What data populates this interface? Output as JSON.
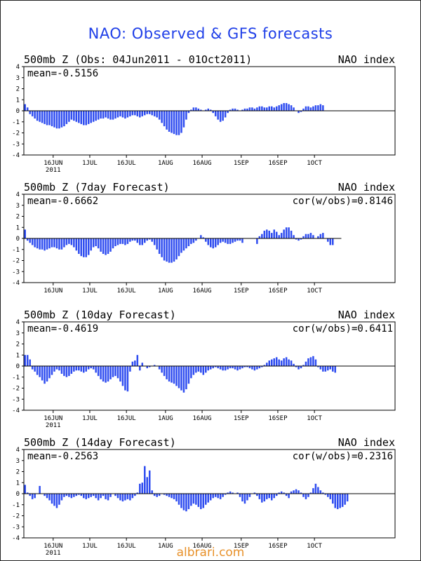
{
  "title": "NAO: Observed & GFS forecasts",
  "watermark": "albrari.com",
  "colors": {
    "bar": "#2f4df0",
    "title": "#1f3fe8",
    "watermark": "#e8912a",
    "axis": "#000000"
  },
  "chart_data": [
    {
      "type": "bar",
      "title": "500mb  Z (Obs: 04Jun2011 - 01Oct2011)",
      "right_label": "NAO index",
      "mean_text": "mean=-0.5156",
      "cor_text": "",
      "ylim": [
        -4,
        4
      ],
      "yticks": [
        4,
        3,
        2,
        1,
        0,
        -1,
        -2,
        -3,
        -4
      ],
      "xlim": [
        4,
        156
      ],
      "xticks": [
        {
          "day": 16,
          "label": "16JUN"
        },
        {
          "day": 31,
          "label": "1JUL"
        },
        {
          "day": 46,
          "label": "16JUL"
        },
        {
          "day": 62,
          "label": "1AUG"
        },
        {
          "day": 77,
          "label": "16AUG"
        },
        {
          "day": 93,
          "label": "1SEP"
        },
        {
          "day": 108,
          "label": "16SEP"
        },
        {
          "day": 123,
          "label": "1OCT"
        }
      ],
      "year_label": "2011",
      "x_start": 4,
      "values": [
        0.6,
        0.3,
        -0.3,
        -0.5,
        -0.7,
        -0.9,
        -1.0,
        -1.1,
        -1.2,
        -1.3,
        -1.3,
        -1.4,
        -1.5,
        -1.6,
        -1.6,
        -1.5,
        -1.4,
        -1.2,
        -1.0,
        -0.8,
        -0.9,
        -1.0,
        -1.1,
        -1.2,
        -1.3,
        -1.3,
        -1.2,
        -1.1,
        -1.0,
        -0.9,
        -0.8,
        -0.7,
        -0.7,
        -0.6,
        -0.7,
        -0.8,
        -0.8,
        -0.7,
        -0.6,
        -0.5,
        -0.6,
        -0.7,
        -0.6,
        -0.5,
        -0.4,
        -0.4,
        -0.5,
        -0.6,
        -0.5,
        -0.4,
        -0.3,
        -0.3,
        -0.4,
        -0.5,
        -0.6,
        -0.8,
        -1.1,
        -1.4,
        -1.7,
        -1.9,
        -2.0,
        -2.1,
        -2.2,
        -2.2,
        -2.0,
        -1.5,
        -0.8,
        -0.2,
        0.1,
        0.3,
        0.3,
        0.2,
        0.1,
        0.0,
        0.1,
        0.2,
        0.1,
        -0.2,
        -0.5,
        -0.8,
        -1.0,
        -0.9,
        -0.6,
        -0.2,
        0.1,
        0.2,
        0.2,
        0.1,
        0.0,
        0.1,
        0.2,
        0.2,
        0.3,
        0.3,
        0.2,
        0.3,
        0.4,
        0.4,
        0.3,
        0.3,
        0.4,
        0.4,
        0.3,
        0.4,
        0.5,
        0.6,
        0.7,
        0.7,
        0.6,
        0.5,
        0.3,
        0.0,
        -0.2,
        -0.1,
        0.2,
        0.4,
        0.4,
        0.3,
        0.4,
        0.5,
        0.5,
        0.6,
        0.5
      ],
      "reference_line_to": 156
    },
    {
      "type": "bar",
      "title": "500mb  Z (7day Forecast)",
      "right_label": "NAO index",
      "mean_text": "mean=-0.6662",
      "cor_text": "cor(w/obs)=0.8146",
      "ylim": [
        -4,
        4
      ],
      "yticks": [
        4,
        3,
        2,
        1,
        0,
        -1,
        -2,
        -3,
        -4
      ],
      "xlim": [
        4,
        156
      ],
      "xticks": [
        {
          "day": 16,
          "label": "16JUN"
        },
        {
          "day": 31,
          "label": "1JUL"
        },
        {
          "day": 46,
          "label": "16JUL"
        },
        {
          "day": 62,
          "label": "1AUG"
        },
        {
          "day": 77,
          "label": "16AUG"
        },
        {
          "day": 93,
          "label": "1SEP"
        },
        {
          "day": 108,
          "label": "16SEP"
        },
        {
          "day": 123,
          "label": "1OCT"
        }
      ],
      "year_label": "",
      "x_start": 4,
      "values": [
        0.8,
        -0.2,
        -0.4,
        -0.6,
        -0.8,
        -0.9,
        -1.0,
        -1.0,
        -1.1,
        -1.0,
        -0.9,
        -0.8,
        -0.8,
        -0.9,
        -1.0,
        -1.0,
        -0.8,
        -0.6,
        -0.5,
        -0.6,
        -0.8,
        -1.1,
        -1.4,
        -1.6,
        -1.7,
        -1.7,
        -1.5,
        -1.1,
        -0.8,
        -0.7,
        -0.9,
        -1.2,
        -1.4,
        -1.5,
        -1.4,
        -1.2,
        -0.9,
        -0.7,
        -0.6,
        -0.5,
        -0.5,
        -0.6,
        -0.5,
        -0.3,
        -0.2,
        -0.2,
        -0.4,
        -0.6,
        -0.6,
        -0.4,
        -0.2,
        -0.1,
        -0.3,
        -0.6,
        -1.0,
        -1.4,
        -1.7,
        -2.0,
        -2.1,
        -2.2,
        -2.2,
        -2.1,
        -1.9,
        -1.6,
        -1.3,
        -1.1,
        -0.9,
        -0.7,
        -0.5,
        -0.4,
        -0.2,
        0.0,
        0.3,
        0.1,
        -0.3,
        -0.6,
        -0.8,
        -0.9,
        -0.8,
        -0.6,
        -0.4,
        -0.3,
        -0.4,
        -0.5,
        -0.5,
        -0.4,
        -0.3,
        -0.2,
        -0.2,
        -0.4,
        0.0,
        0.0,
        0.0,
        0.0,
        0.0,
        -0.5,
        0.2,
        0.4,
        0.7,
        0.8,
        0.7,
        0.5,
        0.8,
        0.6,
        0.3,
        0.5,
        0.8,
        1.0,
        1.0,
        0.7,
        0.3,
        -0.1,
        -0.2,
        -0.1,
        0.2,
        0.4,
        0.4,
        0.5,
        0.3,
        0.0,
        0.2,
        0.4,
        0.5,
        0.0,
        -0.3,
        -0.6,
        -0.6
      ],
      "reference_line_to": 134
    },
    {
      "type": "bar",
      "title": "500mb  Z (10day Forecast)",
      "right_label": "NAO index",
      "mean_text": "mean=-0.4619",
      "cor_text": "cor(w/obs)=0.6411",
      "ylim": [
        -4,
        4
      ],
      "yticks": [
        4,
        3,
        2,
        1,
        0,
        -1,
        -2,
        -3,
        -4
      ],
      "xlim": [
        4,
        156
      ],
      "xticks": [
        {
          "day": 16,
          "label": "16JUN"
        },
        {
          "day": 31,
          "label": "1JUL"
        },
        {
          "day": 46,
          "label": "16JUL"
        },
        {
          "day": 62,
          "label": "1AUG"
        },
        {
          "day": 77,
          "label": "16AUG"
        },
        {
          "day": 93,
          "label": "1SEP"
        },
        {
          "day": 108,
          "label": "16SEP"
        },
        {
          "day": 123,
          "label": "1OCT"
        }
      ],
      "year_label": "2011",
      "x_start": 4,
      "values": [
        1.0,
        1.0,
        0.6,
        -0.3,
        -0.5,
        -0.8,
        -1.0,
        -1.3,
        -1.6,
        -1.4,
        -1.1,
        -0.8,
        -0.5,
        -0.3,
        -0.4,
        -0.7,
        -0.9,
        -1.0,
        -0.9,
        -0.7,
        -0.5,
        -0.4,
        -0.4,
        -0.5,
        -0.6,
        -0.5,
        -0.3,
        -0.2,
        -0.3,
        -0.6,
        -0.9,
        -1.2,
        -1.4,
        -1.5,
        -1.4,
        -1.2,
        -1.0,
        -0.9,
        -1.1,
        -1.4,
        -1.8,
        -2.2,
        -2.3,
        -0.5,
        0.4,
        0.5,
        1.0,
        -0.4,
        0.3,
        0.0,
        -0.2,
        -0.1,
        0.0,
        0.1,
        0.0,
        -0.3,
        -0.6,
        -0.9,
        -1.2,
        -1.4,
        -1.5,
        -1.6,
        -1.8,
        -2.0,
        -2.2,
        -2.4,
        -2.1,
        -1.6,
        -1.1,
        -0.8,
        -0.6,
        -0.5,
        -0.6,
        -0.8,
        -0.6,
        -0.4,
        -0.3,
        -0.2,
        -0.1,
        -0.2,
        -0.3,
        -0.4,
        -0.4,
        -0.3,
        -0.2,
        -0.2,
        -0.3,
        -0.4,
        -0.3,
        -0.2,
        -0.1,
        -0.1,
        -0.2,
        -0.3,
        -0.4,
        -0.3,
        -0.2,
        -0.1,
        0.1,
        0.3,
        0.5,
        0.6,
        0.7,
        0.8,
        0.6,
        0.5,
        0.7,
        0.8,
        0.6,
        0.5,
        0.2,
        -0.1,
        -0.3,
        -0.2,
        0.1,
        0.4,
        0.7,
        0.8,
        0.9,
        0.6,
        -0.1,
        -0.3,
        -0.5,
        -0.5,
        -0.4,
        -0.3,
        -0.5,
        -0.6
      ],
      "reference_line_to": 156
    },
    {
      "type": "bar",
      "title": "500mb  Z (14day Forecast)",
      "right_label": "NAO index",
      "mean_text": "mean=-0.2563",
      "cor_text": "cor(w/obs)=0.2316",
      "ylim": [
        -4,
        4
      ],
      "yticks": [
        4,
        3,
        2,
        1,
        0,
        -1,
        -2,
        -3,
        -4
      ],
      "xlim": [
        4,
        156
      ],
      "xticks": [
        {
          "day": 16,
          "label": "16JUN"
        },
        {
          "day": 31,
          "label": "1JUL"
        },
        {
          "day": 46,
          "label": "16JUL"
        },
        {
          "day": 62,
          "label": "1AUG"
        },
        {
          "day": 77,
          "label": "16AUG"
        },
        {
          "day": 93,
          "label": "1SEP"
        },
        {
          "day": 108,
          "label": "16SEP"
        },
        {
          "day": 123,
          "label": "1OCT"
        }
      ],
      "year_label": "2011",
      "x_start": 4,
      "values": [
        0.8,
        0.1,
        -0.2,
        -0.5,
        -0.4,
        0.0,
        0.7,
        0.0,
        -0.2,
        -0.4,
        -0.6,
        -0.9,
        -1.1,
        -1.3,
        -1.0,
        -0.6,
        -0.3,
        -0.2,
        -0.3,
        -0.4,
        -0.3,
        -0.2,
        -0.1,
        -0.2,
        -0.4,
        -0.5,
        -0.4,
        -0.3,
        -0.2,
        -0.4,
        -0.6,
        -0.4,
        -0.2,
        -0.5,
        -0.6,
        -0.3,
        0.0,
        -0.2,
        -0.4,
        -0.6,
        -0.7,
        -0.6,
        -0.5,
        -0.6,
        -0.4,
        -0.2,
        0.1,
        0.9,
        1.0,
        2.5,
        1.5,
        2.1,
        0.3,
        -0.2,
        -0.3,
        -0.2,
        0.0,
        -0.1,
        -0.2,
        -0.3,
        -0.4,
        -0.5,
        -0.7,
        -1.0,
        -1.3,
        -1.5,
        -1.6,
        -1.4,
        -1.1,
        -0.9,
        -1.0,
        -1.2,
        -1.4,
        -1.3,
        -1.0,
        -0.8,
        -0.6,
        -0.4,
        -0.3,
        -0.4,
        -0.5,
        -0.3,
        -0.1,
        0.1,
        0.2,
        0.1,
        0.0,
        0.1,
        -0.3,
        -0.7,
        -0.9,
        -0.6,
        -0.3,
        0.0,
        0.1,
        -0.2,
        -0.5,
        -0.8,
        -0.7,
        -0.5,
        -0.4,
        -0.6,
        -0.4,
        -0.2,
        0.1,
        0.2,
        0.1,
        -0.2,
        -0.4,
        0.2,
        0.3,
        0.4,
        0.3,
        0.1,
        -0.3,
        -0.5,
        -0.3,
        0.1,
        0.5,
        0.9,
        0.6,
        0.3,
        0.1,
        -0.1,
        -0.3,
        -0.5,
        -0.9,
        -1.3,
        -1.4,
        -1.3,
        -1.2,
        -1.0,
        -0.7
      ],
      "reference_line_to": 156
    }
  ]
}
